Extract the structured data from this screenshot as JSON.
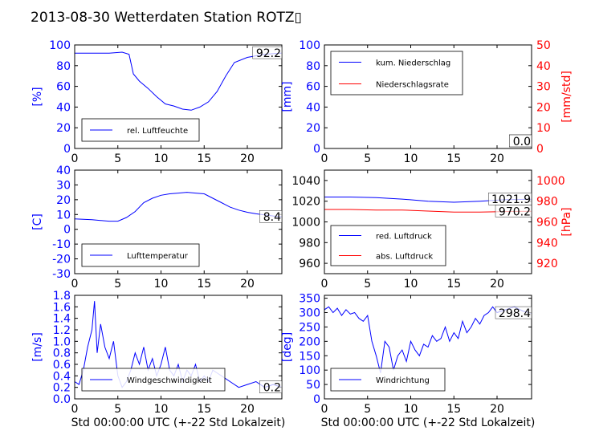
{
  "page_title": "2013-08-30 Wetterdaten Station ROTZ▯",
  "colors": {
    "blue": "#0000ff",
    "red": "#ff0000",
    "black": "#000000",
    "axis_left": "#0000ff",
    "axis_right": "#ff0000"
  },
  "chart_data": [
    {
      "id": "humidity",
      "type": "line",
      "ylabel": "[%]",
      "xlim": [
        0,
        24
      ],
      "ylim": [
        0,
        100
      ],
      "xticks": [
        0,
        5,
        10,
        15,
        20
      ],
      "yticks": [
        0,
        20,
        40,
        60,
        80,
        100
      ],
      "legend_placement": "lower-left",
      "last_value_label": "92.2",
      "series": [
        {
          "name": "rel. Luftfeuchte",
          "color": "#0000ff",
          "x": [
            0,
            2,
            4,
            5.5,
            6.3,
            6.8,
            7.5,
            8.5,
            9.5,
            10.5,
            11.5,
            12.5,
            13.5,
            14.5,
            15.5,
            16.5,
            17.5,
            18.5,
            20,
            22,
            24
          ],
          "y": [
            92,
            92,
            92,
            93,
            91,
            72,
            65,
            58,
            50,
            43,
            41,
            38,
            37,
            40,
            45,
            55,
            70,
            83,
            88,
            91,
            92.2
          ]
        }
      ]
    },
    {
      "id": "precip",
      "type": "line",
      "ylabel": "[mm]",
      "ylabel_right": "[mm/std]",
      "xlim": [
        0,
        24
      ],
      "ylim": [
        0,
        100
      ],
      "ylim_right": [
        0,
        50
      ],
      "xticks": [
        0,
        5,
        10,
        15,
        20
      ],
      "yticks": [
        0,
        20,
        40,
        60,
        80,
        100
      ],
      "yticks_right": [
        0,
        10,
        20,
        30,
        40,
        50
      ],
      "legend_placement": "upper-left",
      "last_value_labels": [
        "0.0",
        "0.0"
      ],
      "series": [
        {
          "name": "kum. Niederschlag",
          "color": "#0000ff",
          "x": [
            0,
            24
          ],
          "y": [
            0,
            0
          ]
        },
        {
          "name": "Niederschlagsrate",
          "color": "#ff0000",
          "x": [
            0,
            24
          ],
          "y": [
            0,
            0
          ],
          "axis": "right"
        }
      ]
    },
    {
      "id": "temperature",
      "type": "line",
      "ylabel": "[C]",
      "xlim": [
        0,
        24
      ],
      "ylim": [
        -30,
        40
      ],
      "xticks": [
        0,
        5,
        10,
        15,
        20
      ],
      "yticks": [
        -30,
        -20,
        -10,
        0,
        10,
        20,
        30,
        40
      ],
      "legend_placement": "lower-left",
      "last_value_label": "8.4",
      "series": [
        {
          "name": "Lufttemperatur",
          "color": "#0000ff",
          "x": [
            0,
            1,
            2,
            3,
            4,
            5,
            6,
            7,
            8,
            9,
            10,
            11,
            12,
            13,
            14,
            15,
            16,
            17,
            18,
            19,
            20,
            21,
            22,
            23,
            24
          ],
          "y": [
            7,
            6.8,
            6.5,
            6,
            5.5,
            5.5,
            8,
            12,
            18,
            21,
            23,
            24,
            24.5,
            25,
            24.5,
            24,
            21,
            18,
            15,
            13,
            11.5,
            10.5,
            9.8,
            9,
            8.4
          ]
        }
      ]
    },
    {
      "id": "pressure",
      "type": "line",
      "ylabel_right": "[hPa]",
      "xlim": [
        0,
        24
      ],
      "ylim": [
        950,
        1050
      ],
      "ylim_right": [
        910,
        1010
      ],
      "xticks": [
        0,
        5,
        10,
        15,
        20
      ],
      "yticks": [
        960,
        980,
        1000,
        1020,
        1040
      ],
      "yticks_right": [
        920,
        940,
        960,
        980,
        1000
      ],
      "legend_placement": "lower-left",
      "last_value_labels": [
        "1021.9",
        "970.2"
      ],
      "series": [
        {
          "name": "red. Luftdruck",
          "color": "#0000ff",
          "x": [
            0,
            3,
            6,
            9,
            12,
            15,
            18,
            21,
            24
          ],
          "y": [
            1024,
            1024,
            1023.5,
            1022,
            1020,
            1019,
            1020,
            1021.5,
            1021.9
          ]
        },
        {
          "name": "abs. Luftdruck",
          "color": "#ff0000",
          "axis": "right",
          "x": [
            0,
            3,
            6,
            9,
            12,
            15,
            18,
            21,
            24
          ],
          "y": [
            972,
            972,
            971.5,
            971.5,
            970.5,
            969.5,
            969.5,
            970,
            970.2
          ]
        }
      ]
    },
    {
      "id": "wind_speed",
      "type": "line",
      "ylabel": "[m/s]",
      "xlabel": "Std 00:00:00 UTC (+-22 Std Lokalzeit)",
      "xlim": [
        0,
        24
      ],
      "ylim": [
        0,
        1.8
      ],
      "xticks": [
        0,
        5,
        10,
        15,
        20
      ],
      "yticks": [
        0.0,
        0.2,
        0.4,
        0.6,
        0.8,
        1.0,
        1.2,
        1.4,
        1.6,
        1.8
      ],
      "legend_placement": "lower-center",
      "last_value_label": "0.2",
      "series": [
        {
          "name": "Windgeschwindigkeit",
          "color": "#0000ff",
          "x": [
            0,
            0.5,
            1,
            1.5,
            2,
            2.3,
            2.6,
            3,
            3.5,
            4,
            4.5,
            5,
            5.5,
            6,
            6.5,
            7,
            7.5,
            8,
            8.5,
            9,
            9.5,
            10,
            10.5,
            11,
            11.5,
            12,
            12.5,
            13,
            13.5,
            14,
            14.5,
            15,
            15.5,
            16,
            17,
            18,
            19,
            20,
            21,
            22,
            23,
            24
          ],
          "y": [
            0.3,
            0.25,
            0.5,
            0.9,
            1.2,
            1.7,
            0.8,
            1.3,
            0.9,
            0.7,
            1.0,
            0.4,
            0.2,
            0.3,
            0.5,
            0.8,
            0.6,
            0.9,
            0.5,
            0.7,
            0.4,
            0.6,
            0.9,
            0.5,
            0.4,
            0.6,
            0.3,
            0.5,
            0.4,
            0.6,
            0.3,
            0.4,
            0.3,
            0.5,
            0.4,
            0.3,
            0.2,
            0.25,
            0.3,
            0.2,
            0.25,
            0.2
          ]
        }
      ]
    },
    {
      "id": "wind_direction",
      "type": "line",
      "ylabel": "[deg]",
      "xlabel": "Std 00:00:00 UTC (+-22 Std Lokalzeit)",
      "xlim": [
        0,
        24
      ],
      "ylim": [
        0,
        360
      ],
      "xticks": [
        0,
        5,
        10,
        15,
        20
      ],
      "yticks": [
        0,
        50,
        100,
        150,
        200,
        250,
        300,
        350
      ],
      "legend_placement": "lower-left",
      "last_value_label": "298.4",
      "series": [
        {
          "name": "Windrichtung",
          "color": "#0000ff",
          "x": [
            0,
            0.5,
            1,
            1.5,
            2,
            2.5,
            3,
            3.5,
            4,
            4.5,
            5,
            5.5,
            6,
            6.5,
            7,
            7.5,
            8,
            8.5,
            9,
            9.5,
            10,
            10.5,
            11,
            11.5,
            12,
            12.5,
            13,
            13.5,
            14,
            14.5,
            15,
            15.5,
            16,
            16.5,
            17,
            17.5,
            18,
            18.5,
            19,
            19.5,
            20,
            21,
            22,
            23,
            24
          ],
          "y": [
            310,
            320,
            300,
            315,
            290,
            310,
            295,
            300,
            280,
            270,
            290,
            200,
            150,
            90,
            200,
            180,
            100,
            150,
            170,
            130,
            200,
            170,
            150,
            190,
            180,
            220,
            200,
            210,
            250,
            200,
            230,
            210,
            270,
            230,
            250,
            280,
            260,
            290,
            300,
            320,
            300,
            310,
            320,
            305,
            298.4
          ]
        }
      ]
    }
  ]
}
